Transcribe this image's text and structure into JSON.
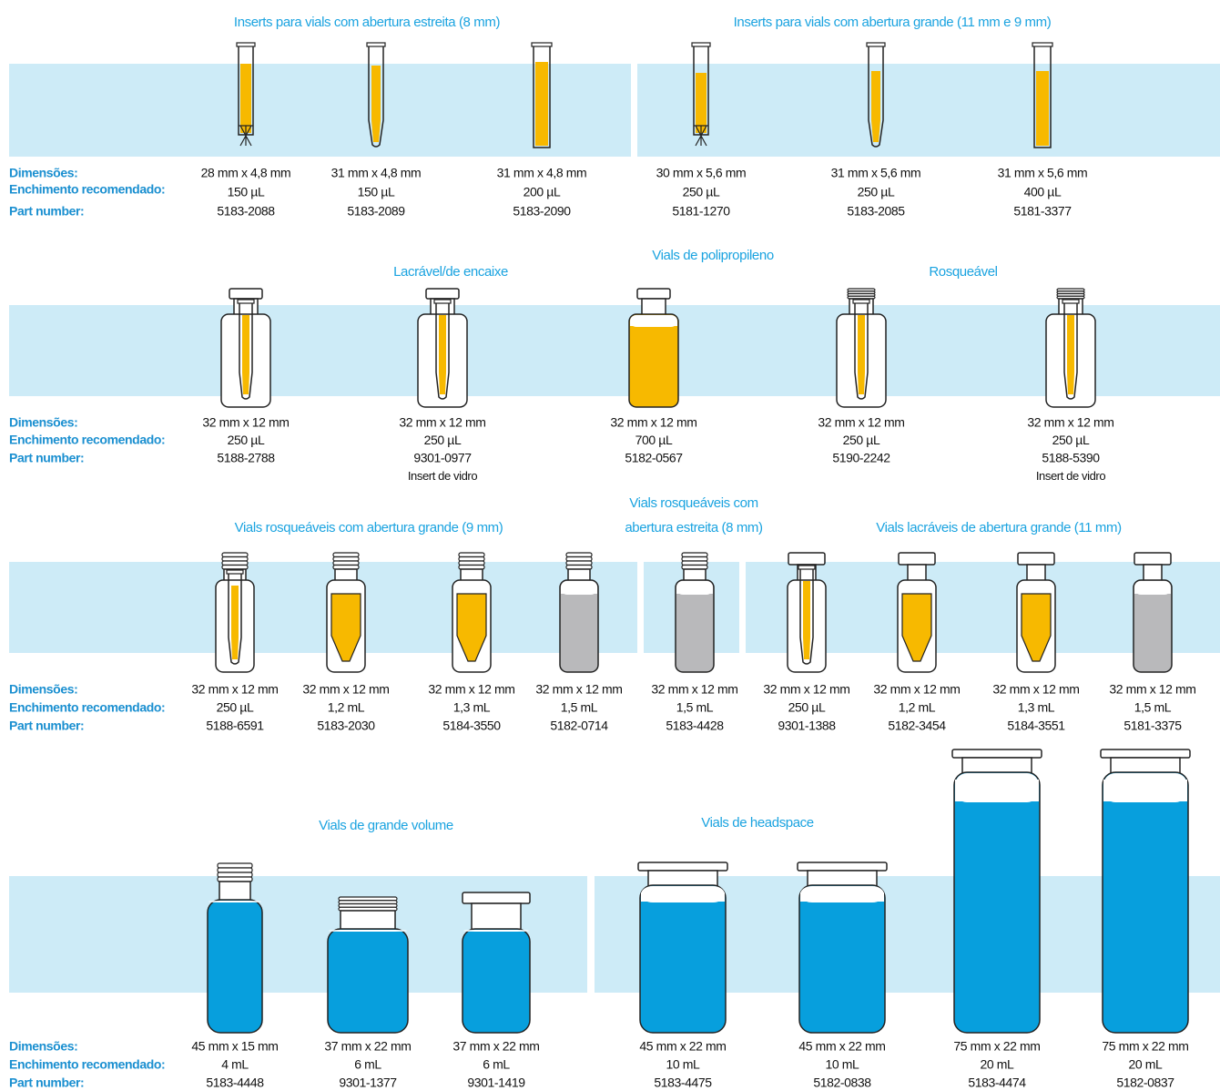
{
  "sections": [
    {
      "titles": [
        "Inserts para vials com abertura estreita (8 mm)",
        "Inserts para vials com abertura grande (11 mm e 9 mm)"
      ],
      "labels": [
        "Dimensões:",
        "Enchimento recomendado:",
        "Part number:"
      ],
      "items": [
        {
          "dimensions": "28 mm x 4,8 mm",
          "fill": "150 µL",
          "part_number": "5183-2088"
        },
        {
          "dimensions": "31 mm x 4,8 mm",
          "fill": "150 µL",
          "part_number": "5183-2089"
        },
        {
          "dimensions": "31 mm x 4,8 mm",
          "fill": "200 µL",
          "part_number": "5183-2090"
        },
        {
          "dimensions": "30 mm x 5,6 mm",
          "fill": "250 µL",
          "part_number": "5181-1270"
        },
        {
          "dimensions": "31 mm x 5,6 mm",
          "fill": "250 µL",
          "part_number": "5183-2085"
        },
        {
          "dimensions": "31 mm x 5,6 mm",
          "fill": "400 µL",
          "part_number": "5181-3377"
        }
      ]
    },
    {
      "titles": [
        "Vials de polipropileno",
        "Lacrável/de encaixe",
        "Rosqueável"
      ],
      "labels": [
        "Dimensões:",
        "Enchimento recomendado:",
        "Part number:"
      ],
      "items": [
        {
          "dimensions": "32 mm x 12 mm",
          "fill": "250 µL",
          "part_number": "5188-2788"
        },
        {
          "dimensions": "32 mm x 12 mm",
          "fill": "250 µL",
          "part_number": "9301-0977",
          "note": "Insert de vidro"
        },
        {
          "dimensions": "32 mm x 12 mm",
          "fill": "700 µL",
          "part_number": "5182-0567"
        },
        {
          "dimensions": "32 mm x 12 mm",
          "fill": "250 µL",
          "part_number": "5190-2242"
        },
        {
          "dimensions": "32 mm x 12 mm",
          "fill": "250 µL",
          "part_number": "5188-5390",
          "note": "Insert de vidro"
        }
      ]
    },
    {
      "titles": [
        "Vials rosqueáveis com abertura grande (9 mm)",
        "Vials rosqueáveis com",
        "abertura estreita (8 mm)",
        "Vials lacráveis de abertura grande (11 mm)"
      ],
      "labels": [
        "Dimensões:",
        "Enchimento recomendado:",
        "Part number:"
      ],
      "items": [
        {
          "dimensions": "32 mm x 12 mm",
          "fill": "250 µL",
          "part_number": "5188-6591"
        },
        {
          "dimensions": "32 mm x 12 mm",
          "fill": "1,2 mL",
          "part_number": "5183-2030"
        },
        {
          "dimensions": "32 mm x 12 mm",
          "fill": "1,3 mL",
          "part_number": "5184-3550"
        },
        {
          "dimensions": "32 mm x 12 mm",
          "fill": "1,5 mL",
          "part_number": "5182-0714"
        },
        {
          "dimensions": "32 mm x 12 mm",
          "fill": "1,5 mL",
          "part_number": "5183-4428"
        },
        {
          "dimensions": "32 mm x 12 mm",
          "fill": "250 µL",
          "part_number": "9301-1388"
        },
        {
          "dimensions": "32 mm x 12 mm",
          "fill": "1,2 mL",
          "part_number": "5182-3454"
        },
        {
          "dimensions": "32 mm x 12 mm",
          "fill": "1,3 mL",
          "part_number": "5184-3551"
        },
        {
          "dimensions": "32 mm x 12 mm",
          "fill": "1,5 mL",
          "part_number": "5181-3375"
        }
      ]
    },
    {
      "titles": [
        "Vials de grande volume",
        "Vials de headspace"
      ],
      "labels": [
        "Dimensões:",
        "Enchimento recomendado:",
        "Part number:"
      ],
      "items": [
        {
          "dimensions": "45 mm x 15 mm",
          "fill": "4 mL",
          "part_number": "5183-4448"
        },
        {
          "dimensions": "37 mm x 22 mm",
          "fill": "6 mL",
          "part_number": "9301-1377"
        },
        {
          "dimensions": "37 mm x 22 mm",
          "fill": "6 mL",
          "part_number": "9301-1419"
        },
        {
          "dimensions": "45 mm x 22 mm",
          "fill": "10 mL",
          "part_number": "5183-4475"
        },
        {
          "dimensions": "45 mm x 22 mm",
          "fill": "10 mL",
          "part_number": "5182-0838"
        },
        {
          "dimensions": "75 mm x 22 mm",
          "fill": "20 mL",
          "part_number": "5183-4474"
        },
        {
          "dimensions": "75 mm x 22 mm",
          "fill": "20 mL",
          "part_number": "5182-0837"
        }
      ]
    }
  ]
}
